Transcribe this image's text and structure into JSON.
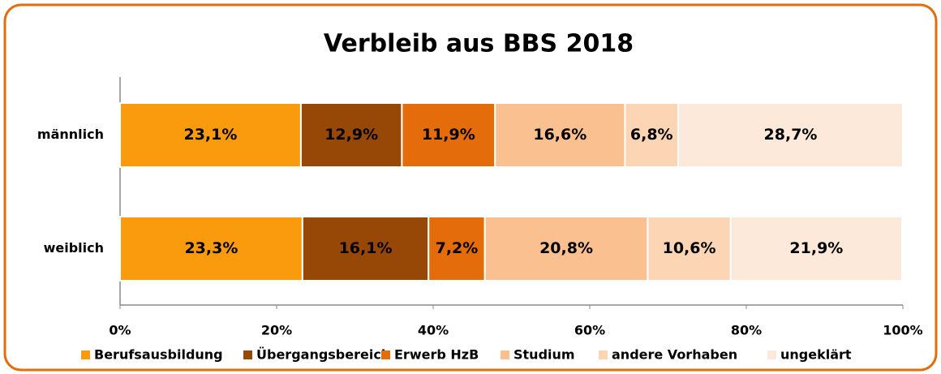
{
  "chart_data": {
    "type": "stacked_bar_horizontal",
    "title": "Verbleib aus BBS 2018",
    "categories": [
      "männlich",
      "weiblich"
    ],
    "series": [
      {
        "name": "Berufsausbildung",
        "color": "#f99b0c",
        "values": [
          23.1,
          23.3
        ],
        "value_labels": [
          "23,1%",
          "23,3%"
        ]
      },
      {
        "name": "Übergangsbereich",
        "color": "#974706",
        "values": [
          12.9,
          16.1
        ],
        "value_labels": [
          "12,9%",
          "16,1%"
        ]
      },
      {
        "name": "Erwerb HzB",
        "color": "#e46c0a",
        "values": [
          11.9,
          7.2
        ],
        "value_labels": [
          "11,9%",
          "7,2%"
        ]
      },
      {
        "name": "Studium",
        "color": "#fac090",
        "values": [
          16.6,
          20.8
        ],
        "value_labels": [
          "16,6%",
          "20,8%"
        ]
      },
      {
        "name": "andere Vorhaben",
        "color": "#fcd5b5",
        "values": [
          6.8,
          10.6
        ],
        "value_labels": [
          "6,8%",
          "10,6%"
        ]
      },
      {
        "name": "ungeklärt",
        "color": "#fde9d9",
        "values": [
          28.7,
          21.9
        ],
        "value_labels": [
          "28,7%",
          "21,9%"
        ]
      }
    ],
    "xlim": [
      0,
      100
    ],
    "xticks": [
      {
        "value": 0,
        "label": "0%"
      },
      {
        "value": 20,
        "label": "20%"
      },
      {
        "value": 40,
        "label": "40%"
      },
      {
        "value": 60,
        "label": "60%"
      },
      {
        "value": 80,
        "label": "80%"
      },
      {
        "value": 100,
        "label": "100%"
      }
    ],
    "legend": "bottom"
  }
}
